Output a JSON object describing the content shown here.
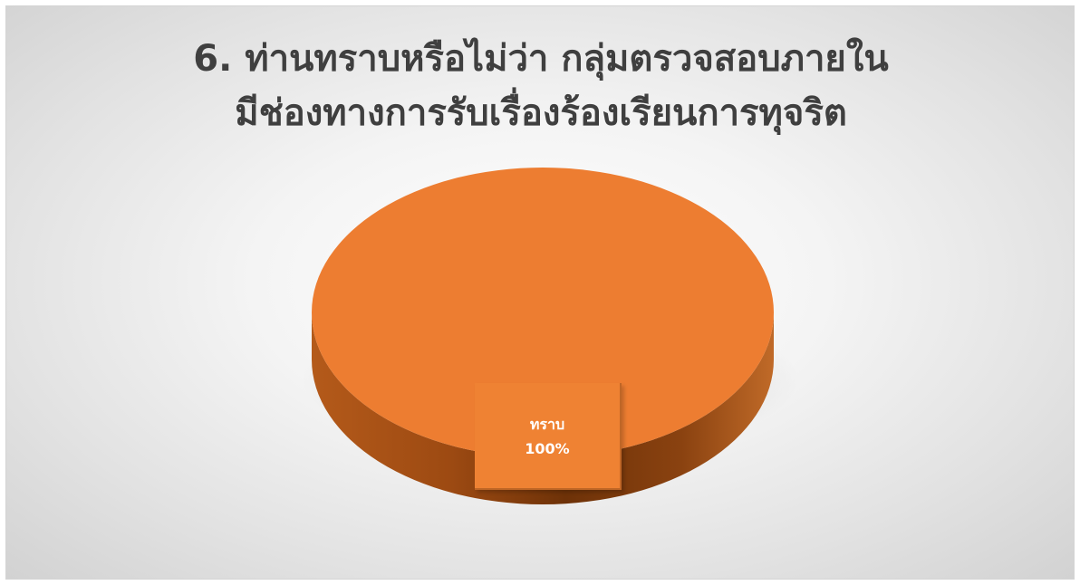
{
  "chart_data": {
    "type": "pie",
    "title": "6. ท่านทราบหรือไม่ว่า กลุ่มตรวจสอบภายใน มีช่องทางการรับเรื่องร้องเรียนการทุจริต",
    "title_lines": [
      "6. ท่านทราบหรือไม่ว่า กลุ่มตรวจสอบภายใน",
      "มีช่องทางการรับเรื่องร้องเรียนการทุจริต"
    ],
    "slices": [
      {
        "label": "ทราบ",
        "value": 100,
        "value_label": "100%",
        "color": "#ED7D31"
      }
    ],
    "style": "3d",
    "legend": "none"
  }
}
